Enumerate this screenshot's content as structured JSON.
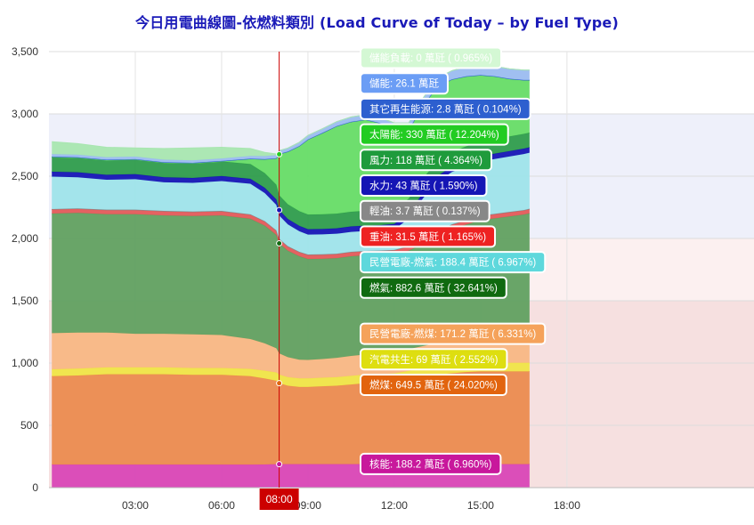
{
  "chart_data": {
    "type": "area",
    "title": "今日用電曲線圖-依燃料類別 (Load Curve of Today – by Fuel Type)",
    "xlabel": "",
    "ylabel": "",
    "unit": "萬瓩",
    "xlim": [
      0,
      24.5
    ],
    "ylim": [
      0,
      3500
    ],
    "yticks": [
      0,
      500,
      1000,
      1500,
      2000,
      2500,
      3000,
      3500
    ],
    "ytick_labels": [
      "0",
      "500",
      "1,000",
      "1,500",
      "2,000",
      "2,500",
      "3,000",
      "3,500"
    ],
    "xticks": [
      3,
      6,
      9,
      12,
      15,
      18
    ],
    "xtick_labels": [
      "03:00",
      "06:00",
      "09:00",
      "12:00",
      "15:00",
      "18:00"
    ],
    "grid": true,
    "legend": "none",
    "crosshair": {
      "time": "08:00",
      "x": 8.0
    },
    "bands": [
      {
        "from": 0,
        "to": 1500,
        "color": "#f6e0e0"
      },
      {
        "from": 1500,
        "to": 2000,
        "color": "#fcf0f0"
      },
      {
        "from": 2000,
        "to": 3000,
        "color": "#eef0fa"
      }
    ],
    "x": [
      0.1,
      1.0,
      2.0,
      3.0,
      4.0,
      5.0,
      6.0,
      7.0,
      7.5,
      7.9,
      8.0,
      8.3,
      8.7,
      9.0,
      9.5,
      10.0,
      10.5,
      11.0,
      11.5,
      12.0,
      12.5,
      13.0,
      13.5,
      14.0,
      14.5,
      15.0,
      15.5,
      16.0,
      16.5,
      16.7
    ],
    "series": [
      {
        "name": "核能",
        "color": "#d946b6",
        "values": [
          185,
          185,
          185,
          185,
          185,
          185,
          185,
          185,
          186,
          188,
          188,
          188,
          188,
          188,
          188,
          188,
          188,
          188,
          188,
          188,
          188,
          188,
          188,
          188,
          188,
          188,
          188,
          188,
          188,
          188
        ]
      },
      {
        "name": "燃煤",
        "color": "#eb8b4f",
        "values": [
          710,
          715,
          725,
          725,
          725,
          720,
          720,
          710,
          690,
          670,
          650,
          630,
          620,
          620,
          625,
          630,
          640,
          650,
          655,
          660,
          680,
          700,
          720,
          730,
          740,
          745,
          745,
          745,
          745,
          745
        ]
      },
      {
        "name": "汽電共生",
        "color": "#efe547",
        "values": [
          55,
          55,
          55,
          55,
          55,
          55,
          55,
          58,
          62,
          66,
          69,
          69,
          69,
          69,
          69,
          69,
          69,
          69,
          69,
          69,
          69,
          69,
          69,
          69,
          69,
          69,
          69,
          69,
          69,
          69
        ]
      },
      {
        "name": "民營電廠-燃煤",
        "color": "#f8b784",
        "values": [
          290,
          290,
          280,
          270,
          270,
          270,
          265,
          240,
          220,
          195,
          171,
          160,
          150,
          148,
          150,
          155,
          160,
          162,
          165,
          170,
          175,
          180,
          185,
          190,
          195,
          200,
          200,
          200,
          200,
          200
        ]
      },
      {
        "name": "燃氣",
        "color": "#61a060",
        "values": [
          960,
          960,
          950,
          960,
          950,
          950,
          960,
          965,
          945,
          910,
          883,
          855,
          830,
          810,
          805,
          800,
          800,
          795,
          790,
          785,
          790,
          820,
          860,
          900,
          920,
          945,
          960,
          975,
          990,
          1000
        ]
      },
      {
        "name": "重油",
        "color": "#e35a5a",
        "values": [
          32,
          32,
          32,
          32,
          32,
          32,
          32,
          32,
          32,
          32,
          32,
          32,
          32,
          32,
          32,
          32,
          32,
          32,
          32,
          32,
          32,
          32,
          32,
          32,
          32,
          32,
          32,
          32,
          32,
          32
        ]
      },
      {
        "name": "輕油",
        "color": "#888888",
        "values": [
          4,
          4,
          4,
          4,
          4,
          4,
          4,
          4,
          4,
          4,
          4,
          4,
          4,
          4,
          4,
          4,
          4,
          4,
          4,
          4,
          4,
          4,
          4,
          4,
          4,
          4,
          4,
          4,
          4,
          4
        ]
      },
      {
        "name": "民營電廠-燃氣",
        "color": "#9ee3ea",
        "values": [
          260,
          250,
          240,
          245,
          230,
          230,
          240,
          245,
          225,
          205,
          188,
          175,
          165,
          160,
          160,
          160,
          160,
          160,
          160,
          165,
          220,
          330,
          400,
          420,
          430,
          435,
          440,
          445,
          450,
          450
        ]
      },
      {
        "name": "水力",
        "color": "#1515b5",
        "values": [
          40,
          40,
          40,
          40,
          40,
          40,
          40,
          40,
          42,
          43,
          43,
          43,
          43,
          43,
          43,
          43,
          43,
          43,
          43,
          43,
          43,
          43,
          43,
          43,
          43,
          43,
          43,
          43,
          43,
          43
        ]
      },
      {
        "name": "風力",
        "color": "#2e9c4c",
        "values": [
          118,
          118,
          118,
          118,
          118,
          118,
          118,
          118,
          118,
          118,
          118,
          118,
          118,
          118,
          118,
          118,
          118,
          118,
          118,
          118,
          118,
          118,
          118,
          118,
          118,
          118,
          118,
          118,
          118,
          118
        ]
      },
      {
        "name": "太陽能",
        "color": "#66dc66",
        "values": [
          0,
          0,
          0,
          0,
          0,
          0,
          0,
          40,
          110,
          210,
          330,
          420,
          520,
          600,
          650,
          700,
          720,
          730,
          700,
          640,
          550,
          580,
          600,
          580,
          560,
          530,
          500,
          460,
          430,
          420
        ]
      },
      {
        "name": "其它再生能源",
        "color": "#2d5fcf",
        "values": [
          3,
          3,
          3,
          3,
          3,
          3,
          3,
          3,
          3,
          3,
          3,
          3,
          3,
          3,
          3,
          3,
          3,
          3,
          3,
          3,
          3,
          3,
          3,
          3,
          3,
          3,
          3,
          3,
          3,
          3
        ]
      },
      {
        "name": "儲能",
        "color": "#9bbcf0",
        "values": [
          20,
          20,
          20,
          20,
          20,
          20,
          20,
          22,
          24,
          25,
          26,
          28,
          30,
          32,
          34,
          36,
          38,
          40,
          45,
          50,
          55,
          60,
          65,
          70,
          75,
          80,
          80,
          80,
          80,
          80
        ]
      },
      {
        "name": "儲能負載",
        "color": "#a8e6b0",
        "values": [
          100,
          90,
          80,
          70,
          90,
          100,
          90,
          60,
          30,
          10,
          0,
          0,
          0,
          0,
          0,
          0,
          0,
          0,
          0,
          0,
          0,
          0,
          0,
          0,
          0,
          0,
          0,
          0,
          0,
          0
        ]
      }
    ],
    "tooltips": [
      {
        "text": "儲能負載: 0 萬瓩 ( 0.965%)",
        "value": 3450,
        "fill": "#d4f8d4",
        "text_color": "#ffffff"
      },
      {
        "text": "儲能: 26.1 萬瓩",
        "value": 3245,
        "fill": "#6b9df5",
        "text_color": "#ffffff"
      },
      {
        "text": "其它再生能源: 2.8 萬瓩 ( 0.104%)",
        "value": 3040,
        "fill": "#2d5fcf",
        "text_color": "#ffffff"
      },
      {
        "text": "太陽能: 330 萬瓩 ( 12.204%)",
        "value": 2835,
        "fill": "#22cc22",
        "text_color": "#ffffff"
      },
      {
        "text": "風力: 118 萬瓩 ( 4.364%)",
        "value": 2630,
        "fill": "#1f9b3c",
        "text_color": "#ffffff"
      },
      {
        "text": "水力: 43 萬瓩 ( 1.590%)",
        "value": 2425,
        "fill": "#1515b5",
        "text_color": "#ffffff"
      },
      {
        "text": "輕油: 3.7 萬瓩 ( 0.137%)",
        "value": 2220,
        "fill": "#888888",
        "text_color": "#ffffff"
      },
      {
        "text": "重油: 31.5 萬瓩 ( 1.165%)",
        "value": 2015,
        "fill": "#ee2222",
        "text_color": "#ffffff"
      },
      {
        "text": "民營電廠-燃氣: 188.4 萬瓩 ( 6.967%)",
        "value": 1810,
        "fill": "#5ed8dc",
        "text_color": "#ffffff"
      },
      {
        "text": "燃氣: 882.6 萬瓩 ( 32.641%)",
        "value": 1605,
        "fill": "#106a10",
        "text_color": "#ffffff"
      },
      {
        "text": "民營電廠-燃煤: 171.2 萬瓩 ( 6.331%)",
        "value": 1235,
        "fill": "#f5a25a",
        "text_color": "#ffffff"
      },
      {
        "text": "汽電共生: 69 萬瓩 ( 2.552%)",
        "value": 1030,
        "fill": "#dede10",
        "text_color": "#ffffff"
      },
      {
        "text": "燃煤: 649.5 萬瓩 ( 24.020%)",
        "value": 825,
        "fill": "#e2640e",
        "text_color": "#ffffff"
      },
      {
        "text": "核能: 188.2 萬瓩 ( 6.960%)",
        "value": 190,
        "fill": "#c8189c",
        "text_color": "#ffffff"
      }
    ],
    "markers": [
      {
        "series": "核能",
        "color": "#c8189c"
      },
      {
        "series": "燃煤",
        "color": "#e2640e"
      },
      {
        "series": "燃氣",
        "color": "#106a10"
      },
      {
        "series": "水力",
        "color": "#1515b5"
      },
      {
        "series": "太陽能",
        "color": "#22cc22"
      }
    ]
  }
}
